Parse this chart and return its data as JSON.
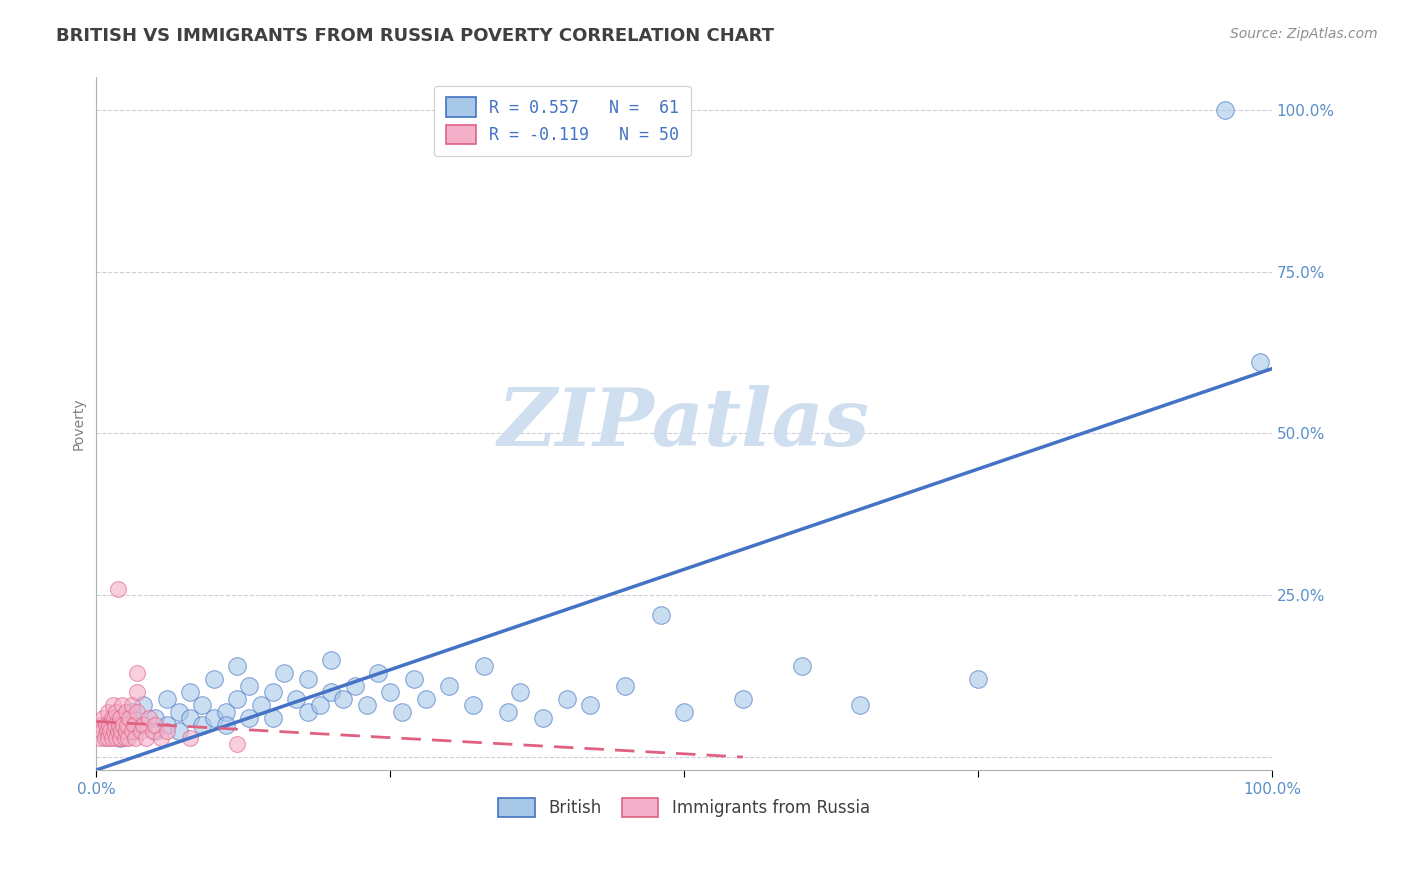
{
  "title": "BRITISH VS IMMIGRANTS FROM RUSSIA POVERTY CORRELATION CHART",
  "source_text": "Source: ZipAtlas.com",
  "ylabel": "Poverty",
  "watermark": "ZIPatlas",
  "xlim": [
    0,
    1
  ],
  "ylim": [
    -0.02,
    1.05
  ],
  "legend_entry_blue": "R = 0.557   N =  61",
  "legend_entry_pink": "R = -0.119   N = 50",
  "blue_line_color": "#4472c4",
  "pink_line_color": "#e06080",
  "blue_scatter_color": "#a8c8e8",
  "pink_scatter_color": "#f4b0c8",
  "background_color": "#ffffff",
  "grid_color": "#c8c8d8",
  "title_color": "#404040",
  "axis_label_color": "#808080",
  "tick_label_color": "#5a8fc8",
  "watermark_color": "#d0dff0",
  "title_fontsize": 13,
  "ylabel_fontsize": 10,
  "source_fontsize": 10,
  "blue_scatter": [
    [
      0.01,
      0.05
    ],
    [
      0.01,
      0.04
    ],
    [
      0.02,
      0.06
    ],
    [
      0.02,
      0.03
    ],
    [
      0.03,
      0.07
    ],
    [
      0.03,
      0.04
    ],
    [
      0.04,
      0.05
    ],
    [
      0.04,
      0.08
    ],
    [
      0.05,
      0.04
    ],
    [
      0.05,
      0.06
    ],
    [
      0.06,
      0.05
    ],
    [
      0.06,
      0.09
    ],
    [
      0.07,
      0.04
    ],
    [
      0.07,
      0.07
    ],
    [
      0.08,
      0.06
    ],
    [
      0.08,
      0.1
    ],
    [
      0.09,
      0.05
    ],
    [
      0.09,
      0.08
    ],
    [
      0.1,
      0.06
    ],
    [
      0.1,
      0.12
    ],
    [
      0.11,
      0.07
    ],
    [
      0.11,
      0.05
    ],
    [
      0.12,
      0.09
    ],
    [
      0.12,
      0.14
    ],
    [
      0.13,
      0.06
    ],
    [
      0.13,
      0.11
    ],
    [
      0.14,
      0.08
    ],
    [
      0.15,
      0.1
    ],
    [
      0.15,
      0.06
    ],
    [
      0.16,
      0.13
    ],
    [
      0.17,
      0.09
    ],
    [
      0.18,
      0.07
    ],
    [
      0.18,
      0.12
    ],
    [
      0.19,
      0.08
    ],
    [
      0.2,
      0.1
    ],
    [
      0.2,
      0.15
    ],
    [
      0.21,
      0.09
    ],
    [
      0.22,
      0.11
    ],
    [
      0.23,
      0.08
    ],
    [
      0.24,
      0.13
    ],
    [
      0.25,
      0.1
    ],
    [
      0.26,
      0.07
    ],
    [
      0.27,
      0.12
    ],
    [
      0.28,
      0.09
    ],
    [
      0.3,
      0.11
    ],
    [
      0.32,
      0.08
    ],
    [
      0.33,
      0.14
    ],
    [
      0.35,
      0.07
    ],
    [
      0.36,
      0.1
    ],
    [
      0.38,
      0.06
    ],
    [
      0.4,
      0.09
    ],
    [
      0.42,
      0.08
    ],
    [
      0.45,
      0.11
    ],
    [
      0.48,
      0.22
    ],
    [
      0.5,
      0.07
    ],
    [
      0.55,
      0.09
    ],
    [
      0.6,
      0.14
    ],
    [
      0.65,
      0.08
    ],
    [
      0.75,
      0.12
    ],
    [
      0.96,
      1.0
    ],
    [
      0.99,
      0.61
    ]
  ],
  "pink_scatter": [
    [
      0.003,
      0.03
    ],
    [
      0.004,
      0.05
    ],
    [
      0.005,
      0.04
    ],
    [
      0.006,
      0.06
    ],
    [
      0.007,
      0.03
    ],
    [
      0.008,
      0.05
    ],
    [
      0.009,
      0.04
    ],
    [
      0.01,
      0.07
    ],
    [
      0.01,
      0.03
    ],
    [
      0.011,
      0.05
    ],
    [
      0.012,
      0.04
    ],
    [
      0.013,
      0.06
    ],
    [
      0.013,
      0.03
    ],
    [
      0.014,
      0.08
    ],
    [
      0.015,
      0.04
    ],
    [
      0.015,
      0.06
    ],
    [
      0.016,
      0.05
    ],
    [
      0.017,
      0.03
    ],
    [
      0.017,
      0.07
    ],
    [
      0.018,
      0.04
    ],
    [
      0.018,
      0.26
    ],
    [
      0.019,
      0.05
    ],
    [
      0.02,
      0.03
    ],
    [
      0.02,
      0.06
    ],
    [
      0.021,
      0.04
    ],
    [
      0.022,
      0.08
    ],
    [
      0.023,
      0.05
    ],
    [
      0.024,
      0.03
    ],
    [
      0.025,
      0.07
    ],
    [
      0.025,
      0.04
    ],
    [
      0.026,
      0.05
    ],
    [
      0.027,
      0.03
    ],
    [
      0.028,
      0.06
    ],
    [
      0.03,
      0.04
    ],
    [
      0.03,
      0.08
    ],
    [
      0.032,
      0.05
    ],
    [
      0.033,
      0.03
    ],
    [
      0.035,
      0.07
    ],
    [
      0.035,
      0.1
    ],
    [
      0.035,
      0.13
    ],
    [
      0.038,
      0.04
    ],
    [
      0.04,
      0.05
    ],
    [
      0.042,
      0.03
    ],
    [
      0.045,
      0.06
    ],
    [
      0.048,
      0.04
    ],
    [
      0.05,
      0.05
    ],
    [
      0.055,
      0.03
    ],
    [
      0.06,
      0.04
    ],
    [
      0.08,
      0.03
    ],
    [
      0.12,
      0.02
    ]
  ],
  "blue_line_x": [
    0.0,
    1.0
  ],
  "blue_line_y": [
    -0.02,
    0.6
  ],
  "pink_line_x": [
    0.0,
    0.55
  ],
  "pink_line_y": [
    0.055,
    0.0
  ]
}
